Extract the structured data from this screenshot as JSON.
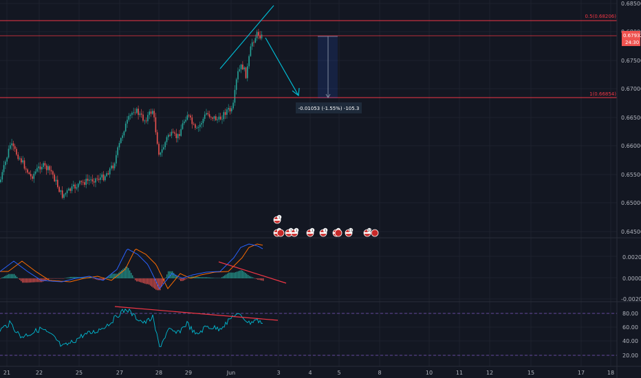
{
  "colors": {
    "background": "#131722",
    "grid": "#1e222d",
    "up": "#26a69a",
    "down": "#ef5350",
    "fib_line": "#f23645",
    "trendline": "#00bcd4",
    "macd": "#2962ff",
    "signal": "#ff6d00",
    "rsi": "#00bcd4",
    "rsi_band": "#7e57c2",
    "divergence": "#f23645",
    "price_tag": "#ef5350"
  },
  "price_axis": {
    "ticks": [
      "0.68500",
      "0.68000",
      "0.67500",
      "0.67000",
      "0.66500",
      "0.66000",
      "0.65500",
      "0.65000",
      "0.64500"
    ],
    "current_price": "0.67932",
    "countdown": "24:30"
  },
  "time_axis": {
    "labels": [
      "21",
      "22",
      "25",
      "27",
      "28",
      "29",
      "Jun",
      "3",
      "4",
      "5",
      "8",
      "10",
      "11",
      "12",
      "15",
      "17",
      "18"
    ]
  },
  "fib_levels": {
    "upper_label": "0.5(0.68206)",
    "lower_label": "1(0.66854)"
  },
  "measure_box": {
    "label": "-0.01053 (-1.55%) -105.3"
  },
  "macd_axis": {
    "ticks": [
      "0.00200",
      "0.00000",
      "-0.00200"
    ]
  },
  "rsi_axis": {
    "ticks": [
      "80.00",
      "60.00",
      "40.00",
      "20.00"
    ]
  },
  "events": {
    "row1": [
      "1"
    ],
    "row2": [
      "2",
      "3",
      "3",
      "3",
      "3",
      "2",
      "11",
      "10"
    ]
  }
}
